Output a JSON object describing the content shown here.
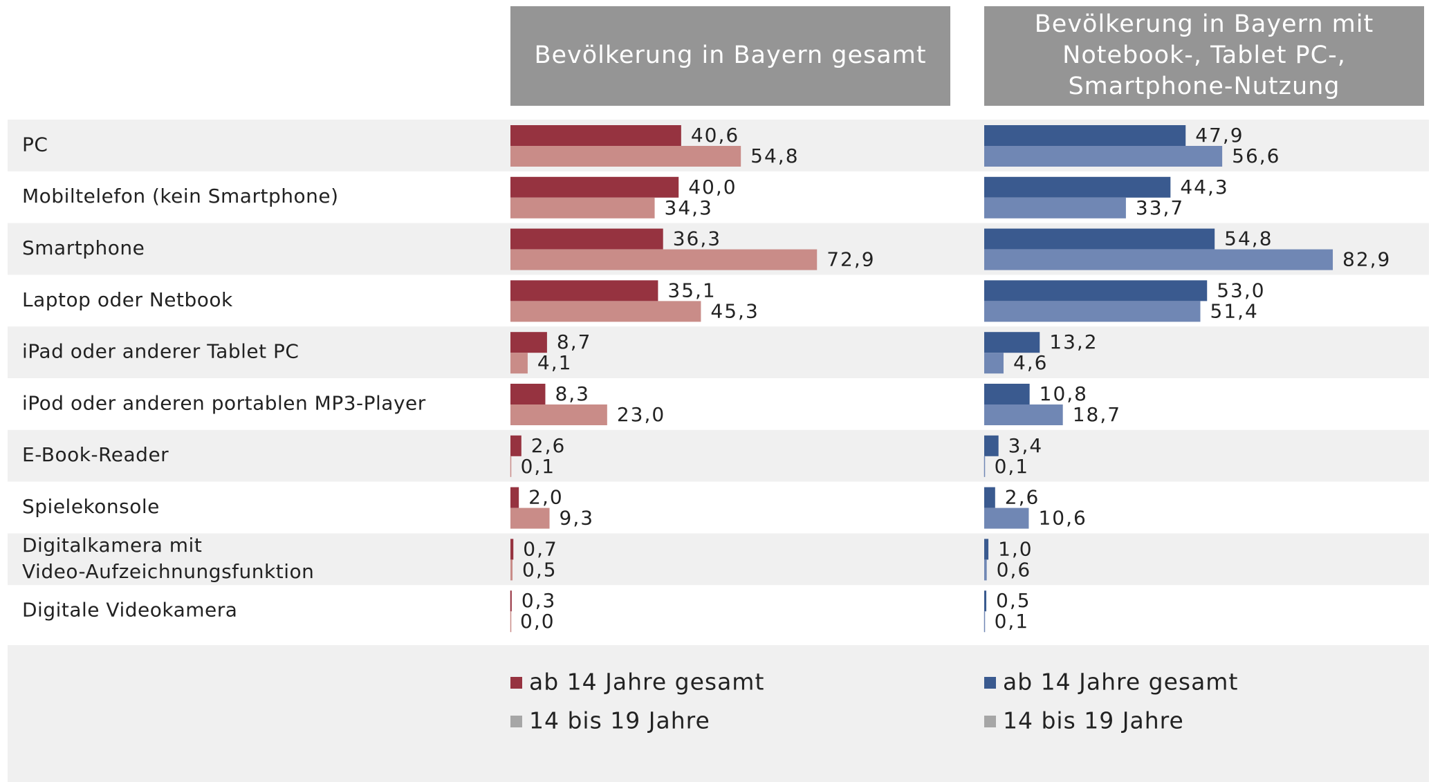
{
  "chart_data": [
    {
      "type": "bar",
      "orientation": "horizontal",
      "title": "Bevölkerung in Bayern gesamt",
      "categories": [
        "PC",
        "Mobiltelefon (kein Smartphone)",
        "Smartphone",
        "Laptop oder Netbook",
        "iPad oder anderer Tablet PC",
        "iPod oder anderen portablen MP3-Player",
        "E-Book-Reader",
        "Spielekonsole",
        "Digitalkamera mit\nVideo-Aufzeichnungsfunktion",
        "Digitale Videokamera"
      ],
      "xlim": [
        0,
        100
      ],
      "series": [
        {
          "name": "ab 14 Jahre gesamt",
          "color": "#963340",
          "legend_color": "#963340",
          "values": [
            40.6,
            40.0,
            36.3,
            35.1,
            8.7,
            8.3,
            2.6,
            2.0,
            0.7,
            0.3
          ],
          "value_labels": [
            "40,6",
            "40,0",
            "36,3",
            "35,1",
            "8,7",
            "8,3",
            "2,6",
            "2,0",
            "0,7",
            "0,3"
          ]
        },
        {
          "name": "14 bis 19 Jahre",
          "color": "#c98c88",
          "legend_color": "#a6a6a6",
          "values": [
            54.8,
            34.3,
            72.9,
            45.3,
            4.1,
            23.0,
            0.1,
            9.3,
            0.5,
            0.0
          ],
          "value_labels": [
            "54,8",
            "34,3",
            "72,9",
            "45,3",
            "4,1",
            "23,0",
            "0,1",
            "9,3",
            "0,5",
            "0,0"
          ]
        }
      ]
    },
    {
      "type": "bar",
      "orientation": "horizontal",
      "title": "Bevölkerung in Bayern mit\nNotebook-, Tablet PC-,\nSmartphone-Nutzung",
      "xlim": [
        0,
        100
      ],
      "series": [
        {
          "name": "ab 14 Jahre gesamt",
          "color": "#3a5a8f",
          "legend_color": "#3a5a8f",
          "values": [
            47.9,
            44.3,
            54.8,
            53.0,
            13.2,
            10.8,
            3.4,
            2.6,
            1.0,
            0.5
          ],
          "value_labels": [
            "47,9",
            "44,3",
            "54,8",
            "53,0",
            "13,2",
            "10,8",
            "3,4",
            "2,6",
            "1,0",
            "0,5"
          ]
        },
        {
          "name": "14 bis 19 Jahre",
          "color": "#7087b4",
          "legend_color": "#a6a6a6",
          "values": [
            56.6,
            33.7,
            82.9,
            51.4,
            4.6,
            18.7,
            0.1,
            10.6,
            0.6,
            0.1
          ],
          "value_labels": [
            "56,6",
            "33,7",
            "82,9",
            "51,4",
            "4,6",
            "18,7",
            "0,1",
            "10,6",
            "0,6",
            "0,1"
          ]
        }
      ]
    }
  ]
}
